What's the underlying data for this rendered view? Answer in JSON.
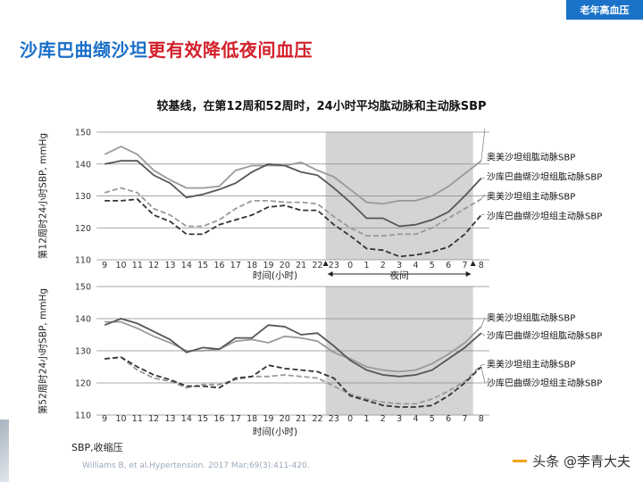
{
  "badge": "老年高血压",
  "title_part1": "沙库巴曲缬沙坦",
  "title_part2": "更有效降低夜间血压",
  "chart_title": "较基线，在第12周和52周时，24小时平均肱动脉和主动脉SBP",
  "footnote": "SBP,收缩压",
  "reference": "Williams B, et al.Hypertension. 2017 Mar;69(3):411-420.",
  "watermark": "头条 @李青大夫",
  "chart_data": [
    {
      "type": "line",
      "ylabel": "第12周时24小时SBP, mmHg",
      "xlabel": "时间(小时)",
      "x": [
        9,
        10,
        11,
        12,
        13,
        14,
        15,
        16,
        17,
        18,
        19,
        20,
        21,
        22,
        23,
        0,
        1,
        2,
        3,
        4,
        5,
        6,
        7,
        8
      ],
      "ylim": [
        110,
        150
      ],
      "yticks": [
        110,
        120,
        130,
        140,
        150
      ],
      "night_band": {
        "from": 23,
        "to": 7,
        "label": "夜间"
      },
      "series": [
        {
          "name": "奥美沙坦组肱动脉SBP",
          "style": "solid",
          "color": "#999999",
          "values": [
            143,
            145.5,
            143,
            138,
            135,
            132.5,
            132.5,
            133,
            138,
            139.5,
            139.5,
            139.5,
            140.5,
            138,
            136,
            132,
            128,
            127.5,
            128.5,
            128.5,
            130,
            133,
            137,
            141
          ]
        },
        {
          "name": "沙库巴曲缬沙坦组肱动脉SBP",
          "style": "solid",
          "color": "#555555",
          "values": [
            140,
            141,
            141,
            136.5,
            134,
            129.5,
            130.5,
            132,
            134,
            137.5,
            140,
            139.5,
            137.5,
            136.5,
            132.5,
            128,
            123,
            123,
            120.5,
            121,
            122.5,
            125,
            130,
            135.5
          ]
        },
        {
          "name": "奥美沙坦组主动脉SBP",
          "style": "dashed",
          "color": "#999999",
          "values": [
            131,
            132.5,
            131,
            126,
            124,
            120.5,
            120.5,
            122.5,
            126,
            128.5,
            128.5,
            128,
            128,
            127.5,
            123.5,
            120,
            117.5,
            117.5,
            118,
            118,
            120,
            123,
            126,
            129
          ]
        },
        {
          "name": "沙库巴曲缬沙坦组主动脉SBP",
          "style": "dashed",
          "color": "#333333",
          "values": [
            128.5,
            128.5,
            129,
            124,
            122,
            118,
            118,
            121,
            122.5,
            124,
            126.5,
            127,
            125.5,
            125.5,
            121,
            117.5,
            113.5,
            113,
            111,
            111.5,
            112.5,
            114,
            118,
            124
          ]
        }
      ]
    },
    {
      "type": "line",
      "ylabel": "第52周时24小时SBP, mmHg",
      "xlabel": "时间(小时)",
      "x": [
        9,
        10,
        11,
        12,
        13,
        14,
        15,
        16,
        17,
        18,
        19,
        20,
        21,
        22,
        23,
        0,
        1,
        2,
        3,
        4,
        5,
        6,
        7,
        8
      ],
      "ylim": [
        110,
        150
      ],
      "yticks": [
        110,
        120,
        130,
        140,
        150
      ],
      "night_band": {
        "from": 23,
        "to": 7,
        "label": ""
      },
      "series": [
        {
          "name": "奥美沙坦组肱动脉SBP",
          "style": "solid",
          "color": "#999999",
          "values": [
            139,
            139,
            137,
            134.5,
            132.5,
            130,
            130,
            130.5,
            133,
            133.5,
            132.5,
            134.5,
            134,
            133,
            129.5,
            127.5,
            125,
            124,
            123.5,
            124,
            126,
            129,
            132.5,
            137.5
          ]
        },
        {
          "name": "沙库巴曲缬沙坦组肱动脉SBP",
          "style": "solid",
          "color": "#555555",
          "values": [
            138,
            140,
            138.5,
            136,
            133.5,
            129.5,
            131,
            130.5,
            134,
            134,
            138,
            137.5,
            135,
            135.5,
            131.5,
            127,
            124,
            122.5,
            122,
            122.5,
            124,
            127.5,
            131,
            135.5
          ]
        },
        {
          "name": "奥美沙坦组主动脉SBP",
          "style": "dashed",
          "color": "#999999",
          "values": [
            127.5,
            128,
            124,
            121.5,
            120.5,
            118.5,
            119.5,
            119.5,
            121,
            122,
            122,
            122.5,
            122,
            121.5,
            119,
            116.5,
            115,
            114,
            113.5,
            113.5,
            115,
            117.5,
            120.5,
            125.5
          ]
        },
        {
          "name": "沙库巴曲缬沙坦组主动脉SBP",
          "style": "dashed",
          "color": "#333333",
          "values": [
            127.5,
            128,
            125,
            122.5,
            121,
            119,
            119,
            118.5,
            121.5,
            122,
            125.5,
            124.5,
            124,
            123.5,
            121.5,
            116,
            114.5,
            113,
            112.5,
            112.5,
            113,
            116,
            120,
            125
          ]
        }
      ]
    }
  ]
}
